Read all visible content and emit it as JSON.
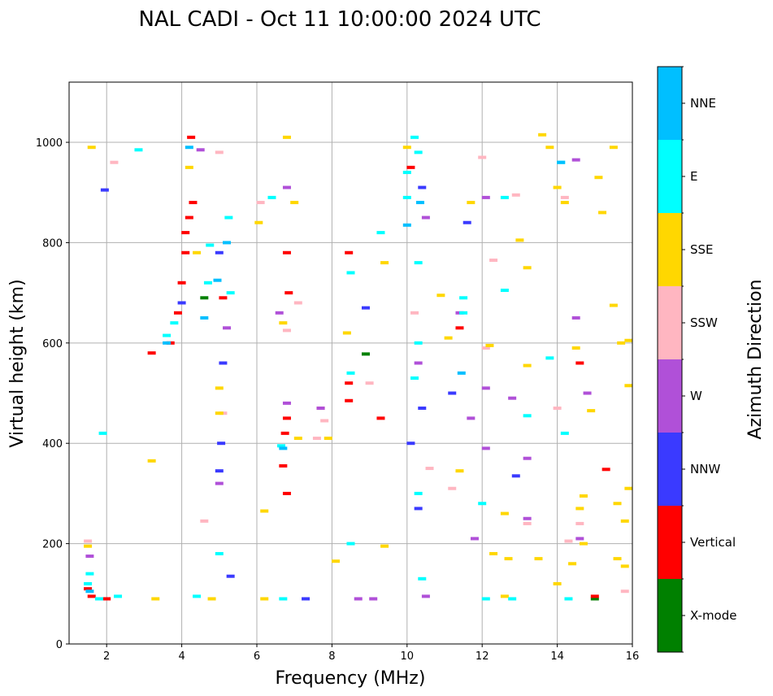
{
  "chart_data": {
    "type": "scatter",
    "title": "NAL CADI - Oct 11 10:00:00 2024 UTC",
    "xlabel": "Frequency (MHz)",
    "ylabel": "Virtual height (km)",
    "xlim": [
      1,
      16
    ],
    "ylim": [
      0,
      1120
    ],
    "xticks": [
      "2",
      "4",
      "6",
      "8",
      "10",
      "12",
      "14",
      "16"
    ],
    "yticks": [
      "0",
      "200",
      "400",
      "600",
      "800",
      "1000"
    ],
    "grid": true,
    "colorbar": {
      "label": "Azimuth Direction",
      "categories": [
        {
          "name": "X-mode",
          "color": "#008000"
        },
        {
          "name": "Vertical",
          "color": "#ff0000"
        },
        {
          "name": "NNW",
          "color": "#3a3aff"
        },
        {
          "name": "W",
          "color": "#b050d8"
        },
        {
          "name": "SSW",
          "color": "#ffb6c1"
        },
        {
          "name": "SSE",
          "color": "#ffd700"
        },
        {
          "name": "E",
          "color": "#00ffff"
        },
        {
          "name": "NNE",
          "color": "#00bfff"
        }
      ]
    },
    "series": [
      {
        "name": "X-mode",
        "points": [
          [
            15.0,
            90
          ],
          [
            8.9,
            578
          ],
          [
            4.6,
            690
          ]
        ]
      },
      {
        "name": "Vertical",
        "points": [
          [
            1.6,
            95
          ],
          [
            1.5,
            110
          ],
          [
            2.0,
            90
          ],
          [
            3.7,
            600
          ],
          [
            3.9,
            660
          ],
          [
            4.0,
            720
          ],
          [
            4.1,
            780
          ],
          [
            4.1,
            820
          ],
          [
            4.2,
            850
          ],
          [
            4.25,
            1010
          ],
          [
            4.3,
            880
          ],
          [
            6.8,
            450
          ],
          [
            6.75,
            420
          ],
          [
            6.7,
            355
          ],
          [
            6.8,
            300
          ],
          [
            6.8,
            780
          ],
          [
            6.85,
            700
          ],
          [
            8.45,
            520
          ],
          [
            8.45,
            485
          ],
          [
            8.45,
            780
          ],
          [
            9.3,
            450
          ],
          [
            10.1,
            950
          ],
          [
            11.4,
            630
          ],
          [
            14.6,
            560
          ],
          [
            15.3,
            348
          ],
          [
            15.0,
            95
          ],
          [
            3.2,
            580
          ],
          [
            7.7,
            470
          ],
          [
            5.1,
            690
          ]
        ]
      },
      {
        "name": "NNW",
        "points": [
          [
            5.0,
            780
          ],
          [
            5.1,
            560
          ],
          [
            5.05,
            400
          ],
          [
            5.0,
            345
          ],
          [
            5.3,
            135
          ],
          [
            7.3,
            90
          ],
          [
            10.4,
            910
          ],
          [
            10.4,
            470
          ],
          [
            10.3,
            270
          ],
          [
            10.1,
            400
          ],
          [
            11.2,
            500
          ],
          [
            11.6,
            840
          ],
          [
            12.9,
            335
          ],
          [
            4.0,
            680
          ],
          [
            8.9,
            670
          ],
          [
            1.95,
            905
          ]
        ]
      },
      {
        "name": "W",
        "points": [
          [
            1.55,
            175
          ],
          [
            5.0,
            320
          ],
          [
            5.2,
            630
          ],
          [
            6.6,
            660
          ],
          [
            6.8,
            480
          ],
          [
            6.8,
            910
          ],
          [
            7.7,
            470
          ],
          [
            8.7,
            90
          ],
          [
            9.1,
            90
          ],
          [
            10.3,
            560
          ],
          [
            10.5,
            850
          ],
          [
            11.7,
            450
          ],
          [
            12.1,
            390
          ],
          [
            12.1,
            510
          ],
          [
            12.8,
            490
          ],
          [
            13.2,
            370
          ],
          [
            13.2,
            250
          ],
          [
            14.6,
            210
          ],
          [
            14.5,
            650
          ],
          [
            14.8,
            500
          ],
          [
            14.5,
            965
          ],
          [
            12.1,
            890
          ],
          [
            11.4,
            660
          ],
          [
            11.8,
            210
          ],
          [
            10.5,
            95
          ],
          [
            4.5,
            985
          ]
        ]
      },
      {
        "name": "SSW",
        "points": [
          [
            1.5,
            205
          ],
          [
            2.2,
            960
          ],
          [
            4.6,
            245
          ],
          [
            5.1,
            460
          ],
          [
            6.8,
            625
          ],
          [
            7.1,
            680
          ],
          [
            7.6,
            410
          ],
          [
            7.8,
            445
          ],
          [
            9.0,
            520
          ],
          [
            10.2,
            660
          ],
          [
            10.6,
            350
          ],
          [
            11.2,
            310
          ],
          [
            12.0,
            970
          ],
          [
            12.3,
            765
          ],
          [
            12.9,
            895
          ],
          [
            13.2,
            240
          ],
          [
            14.0,
            470
          ],
          [
            14.2,
            890
          ],
          [
            14.3,
            205
          ],
          [
            14.6,
            240
          ],
          [
            15.8,
            105
          ],
          [
            5.0,
            980
          ],
          [
            6.1,
            880
          ],
          [
            12.1,
            590
          ]
        ]
      },
      {
        "name": "SSE",
        "points": [
          [
            1.6,
            990
          ],
          [
            1.5,
            195
          ],
          [
            4.4,
            780
          ],
          [
            4.2,
            950
          ],
          [
            5.0,
            460
          ],
          [
            5.0,
            510
          ],
          [
            6.05,
            840
          ],
          [
            6.8,
            1010
          ],
          [
            6.7,
            640
          ],
          [
            7.0,
            880
          ],
          [
            7.1,
            410
          ],
          [
            7.9,
            410
          ],
          [
            8.4,
            620
          ],
          [
            9.4,
            760
          ],
          [
            10.0,
            990
          ],
          [
            10.9,
            695
          ],
          [
            11.1,
            610
          ],
          [
            11.4,
            345
          ],
          [
            11.7,
            880
          ],
          [
            12.2,
            595
          ],
          [
            12.3,
            180
          ],
          [
            12.6,
            260
          ],
          [
            13.2,
            750
          ],
          [
            13.2,
            555
          ],
          [
            13.6,
            1015
          ],
          [
            13.8,
            990
          ],
          [
            14.0,
            910
          ],
          [
            14.2,
            880
          ],
          [
            14.5,
            590
          ],
          [
            14.6,
            270
          ],
          [
            14.7,
            295
          ],
          [
            15.1,
            930
          ],
          [
            15.2,
            860
          ],
          [
            15.5,
            990
          ],
          [
            15.5,
            675
          ],
          [
            15.7,
            600
          ],
          [
            15.9,
            605
          ],
          [
            15.9,
            515
          ],
          [
            15.6,
            280
          ],
          [
            15.9,
            310
          ],
          [
            15.8,
            245
          ],
          [
            15.8,
            155
          ],
          [
            15.6,
            170
          ],
          [
            14.4,
            160
          ],
          [
            14.0,
            120
          ],
          [
            13.5,
            170
          ],
          [
            12.7,
            170
          ],
          [
            12.6,
            95
          ],
          [
            8.1,
            165
          ],
          [
            9.4,
            195
          ],
          [
            6.2,
            265
          ],
          [
            3.3,
            90
          ],
          [
            4.8,
            90
          ],
          [
            6.2,
            90
          ],
          [
            3.2,
            365
          ],
          [
            14.7,
            200
          ],
          [
            14.9,
            465
          ],
          [
            13.0,
            805
          ]
        ]
      },
      {
        "name": "E",
        "points": [
          [
            1.5,
            120
          ],
          [
            1.55,
            140
          ],
          [
            1.8,
            90
          ],
          [
            2.3,
            95
          ],
          [
            1.9,
            420
          ],
          [
            2.85,
            985
          ],
          [
            3.6,
            615
          ],
          [
            3.8,
            640
          ],
          [
            4.4,
            95
          ],
          [
            4.7,
            720
          ],
          [
            4.75,
            795
          ],
          [
            5.0,
            180
          ],
          [
            5.25,
            850
          ],
          [
            6.4,
            890
          ],
          [
            6.65,
            395
          ],
          [
            6.7,
            90
          ],
          [
            8.5,
            740
          ],
          [
            8.5,
            540
          ],
          [
            8.5,
            200
          ],
          [
            10.2,
            1010
          ],
          [
            10.3,
            980
          ],
          [
            10.2,
            530
          ],
          [
            10.3,
            300
          ],
          [
            10.4,
            130
          ],
          [
            10.0,
            890
          ],
          [
            10.0,
            940
          ],
          [
            11.5,
            690
          ],
          [
            11.5,
            660
          ],
          [
            12.0,
            280
          ],
          [
            12.1,
            90
          ],
          [
            12.6,
            705
          ],
          [
            12.6,
            890
          ],
          [
            12.8,
            90
          ],
          [
            13.2,
            455
          ],
          [
            13.8,
            570
          ],
          [
            14.1,
            960
          ],
          [
            14.2,
            420
          ],
          [
            14.3,
            90
          ],
          [
            9.3,
            820
          ],
          [
            10.3,
            760
          ],
          [
            10.3,
            600
          ],
          [
            5.3,
            700
          ]
        ]
      },
      {
        "name": "NNE",
        "points": [
          [
            1.55,
            105
          ],
          [
            3.6,
            600
          ],
          [
            4.2,
            990
          ],
          [
            4.95,
            725
          ],
          [
            5.2,
            800
          ],
          [
            10.0,
            835
          ],
          [
            4.6,
            650
          ],
          [
            6.7,
            390
          ],
          [
            10.35,
            880
          ],
          [
            11.45,
            540
          ],
          [
            14.1,
            960
          ]
        ]
      }
    ]
  }
}
